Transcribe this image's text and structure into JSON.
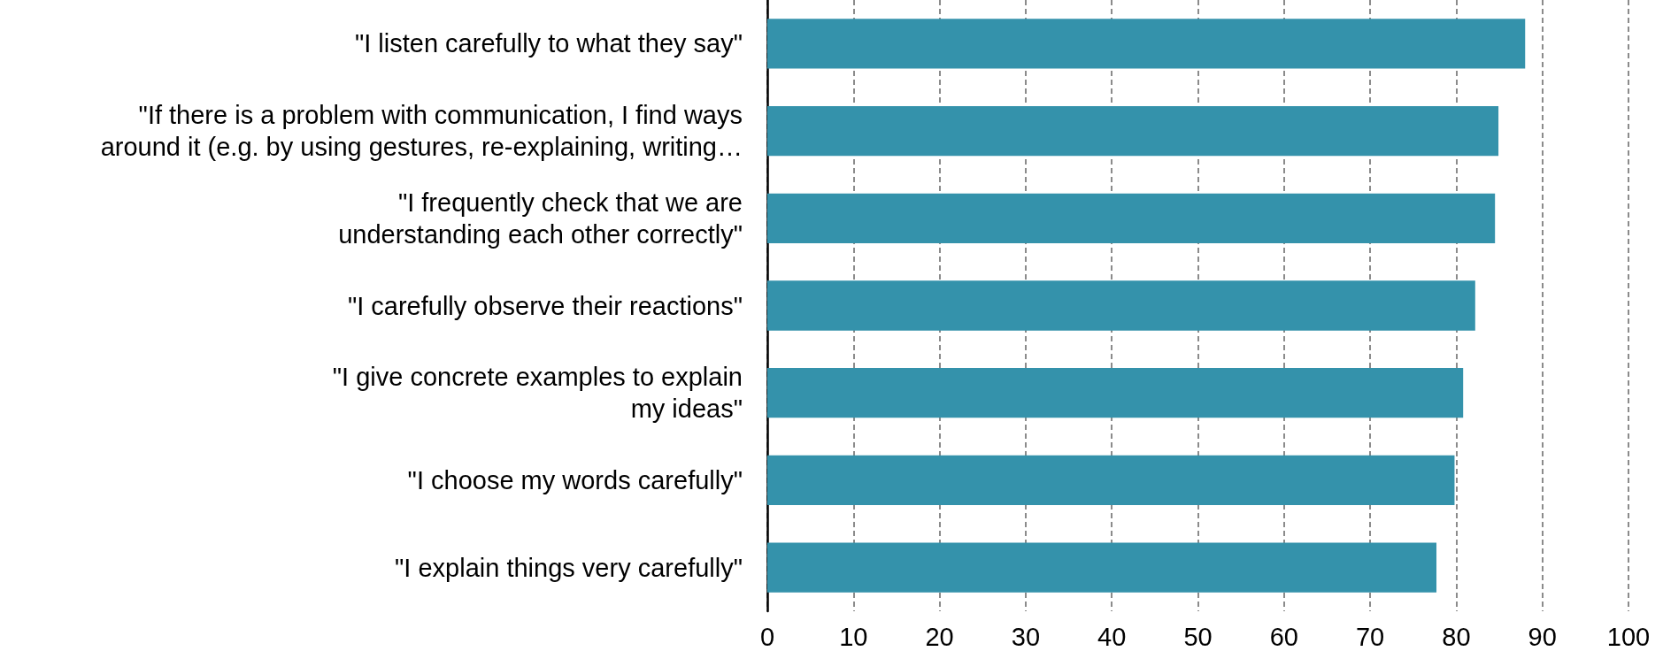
{
  "chart_data": {
    "type": "bar",
    "orientation": "horizontal",
    "categories": [
      "\"I listen carefully to what they say\"",
      "\"If there is a problem with communication, I find ways\naround it (e.g. by using gestures, re-explaining, writing…",
      "\"I frequently check that we are\nunderstanding each other correctly\"",
      "\"I carefully observe their reactions\"",
      "\"I give concrete examples to explain\nmy ideas\"",
      "\"I choose my words carefully\"",
      "\"I explain things very carefully\""
    ],
    "values": [
      88.0,
      84.9,
      84.5,
      82.2,
      80.8,
      79.8,
      77.7
    ],
    "color": "#3492ab",
    "xlim": [
      0,
      100
    ],
    "xticks": [
      0,
      10,
      20,
      30,
      40,
      50,
      60,
      70,
      80,
      90,
      100
    ],
    "grid": "x"
  }
}
